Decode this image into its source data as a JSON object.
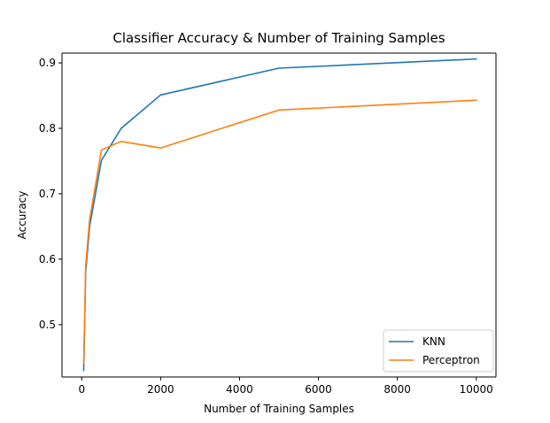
{
  "chart_data": {
    "type": "line",
    "title": "Classifier Accuracy & Number of Training Samples",
    "xlabel": "Number of Training Samples",
    "ylabel": "Accuracy",
    "xlim": [
      -500,
      10500
    ],
    "ylim": [
      0.42,
      0.915
    ],
    "xticks": [
      0,
      2000,
      4000,
      6000,
      8000,
      10000
    ],
    "yticks": [
      0.5,
      0.6,
      0.7,
      0.8,
      0.9
    ],
    "x": [
      50,
      100,
      200,
      500,
      1000,
      2000,
      5000,
      10000
    ],
    "series": [
      {
        "name": "KNN",
        "color": "#1f77b4",
        "values": [
          0.43,
          0.58,
          0.65,
          0.751,
          0.8,
          0.851,
          0.892,
          0.906
        ]
      },
      {
        "name": "Perceptron",
        "color": "#ff7f0e",
        "values": [
          0.44,
          0.59,
          0.66,
          0.767,
          0.78,
          0.77,
          0.828,
          0.843
        ]
      }
    ],
    "grid": false,
    "legend_position": "lower-right"
  }
}
